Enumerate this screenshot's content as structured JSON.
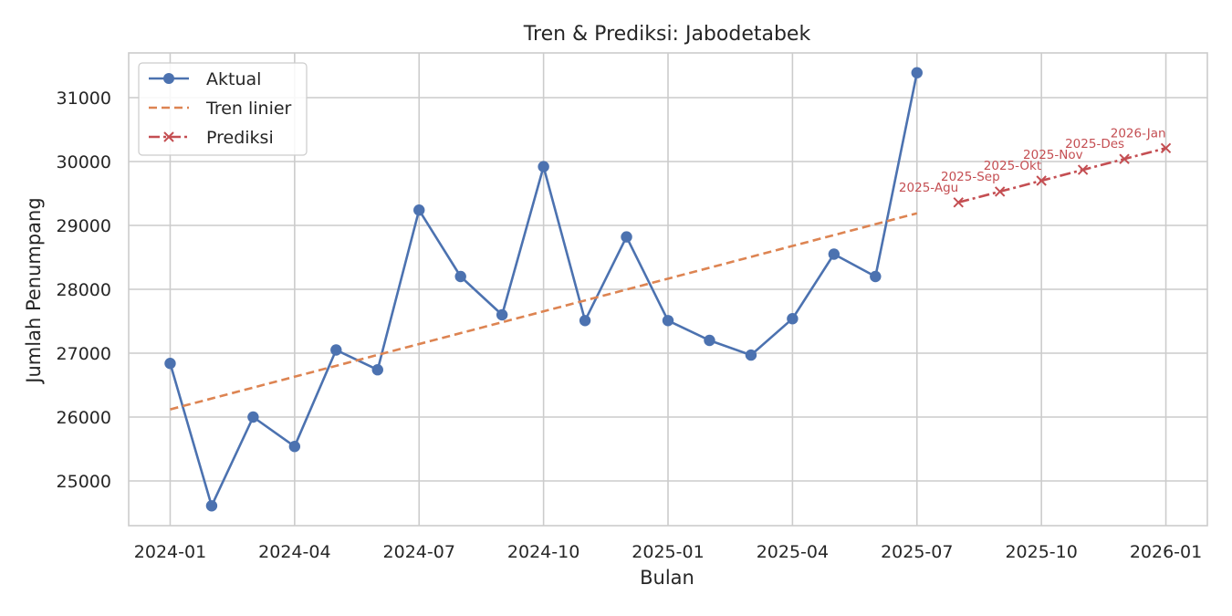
{
  "chart_data": {
    "type": "line",
    "title": "Tren & Prediksi: Jabodetabek",
    "xlabel": "Bulan",
    "ylabel": "Jumlah Penumpang",
    "ylim": [
      24300,
      31700
    ],
    "xlim": [
      "2023-12",
      "2026-02"
    ],
    "x_ticks": [
      "2024-01",
      "2024-04",
      "2024-07",
      "2024-10",
      "2025-01",
      "2025-04",
      "2025-07",
      "2025-10",
      "2026-01"
    ],
    "y_ticks": [
      25000,
      26000,
      27000,
      28000,
      29000,
      30000,
      31000
    ],
    "grid": true,
    "legend_position": "top-left",
    "series": [
      {
        "name": "Aktual",
        "style": "solid-marker-circle",
        "color": "#4c72b0",
        "x": [
          "2024-01",
          "2024-02",
          "2024-03",
          "2024-04",
          "2024-05",
          "2024-06",
          "2024-07",
          "2024-08",
          "2024-09",
          "2024-10",
          "2024-11",
          "2024-12",
          "2025-01",
          "2025-02",
          "2025-03",
          "2025-04",
          "2025-05",
          "2025-06",
          "2025-07"
        ],
        "values": [
          26840,
          24610,
          26000,
          25540,
          27050,
          26740,
          29240,
          28200,
          27600,
          29920,
          27510,
          28820,
          27510,
          27200,
          26970,
          27540,
          28550,
          28200,
          31390
        ]
      },
      {
        "name": "Tren linier",
        "style": "dashed",
        "color": "#dd8452",
        "x": [
          "2024-01",
          "2025-07"
        ],
        "values": [
          26120,
          29190
        ]
      },
      {
        "name": "Prediksi",
        "style": "dashdot-marker-x",
        "color": "#c44e52",
        "x": [
          "2025-08",
          "2025-09",
          "2025-10",
          "2025-11",
          "2025-12",
          "2026-01"
        ],
        "values": [
          29360,
          29530,
          29700,
          29870,
          30040,
          30210
        ],
        "point_labels": [
          "2025-Agu",
          "2025-Sep",
          "2025-Okt",
          "2025-Nov",
          "2025-Des",
          "2026-Jan"
        ]
      }
    ]
  }
}
